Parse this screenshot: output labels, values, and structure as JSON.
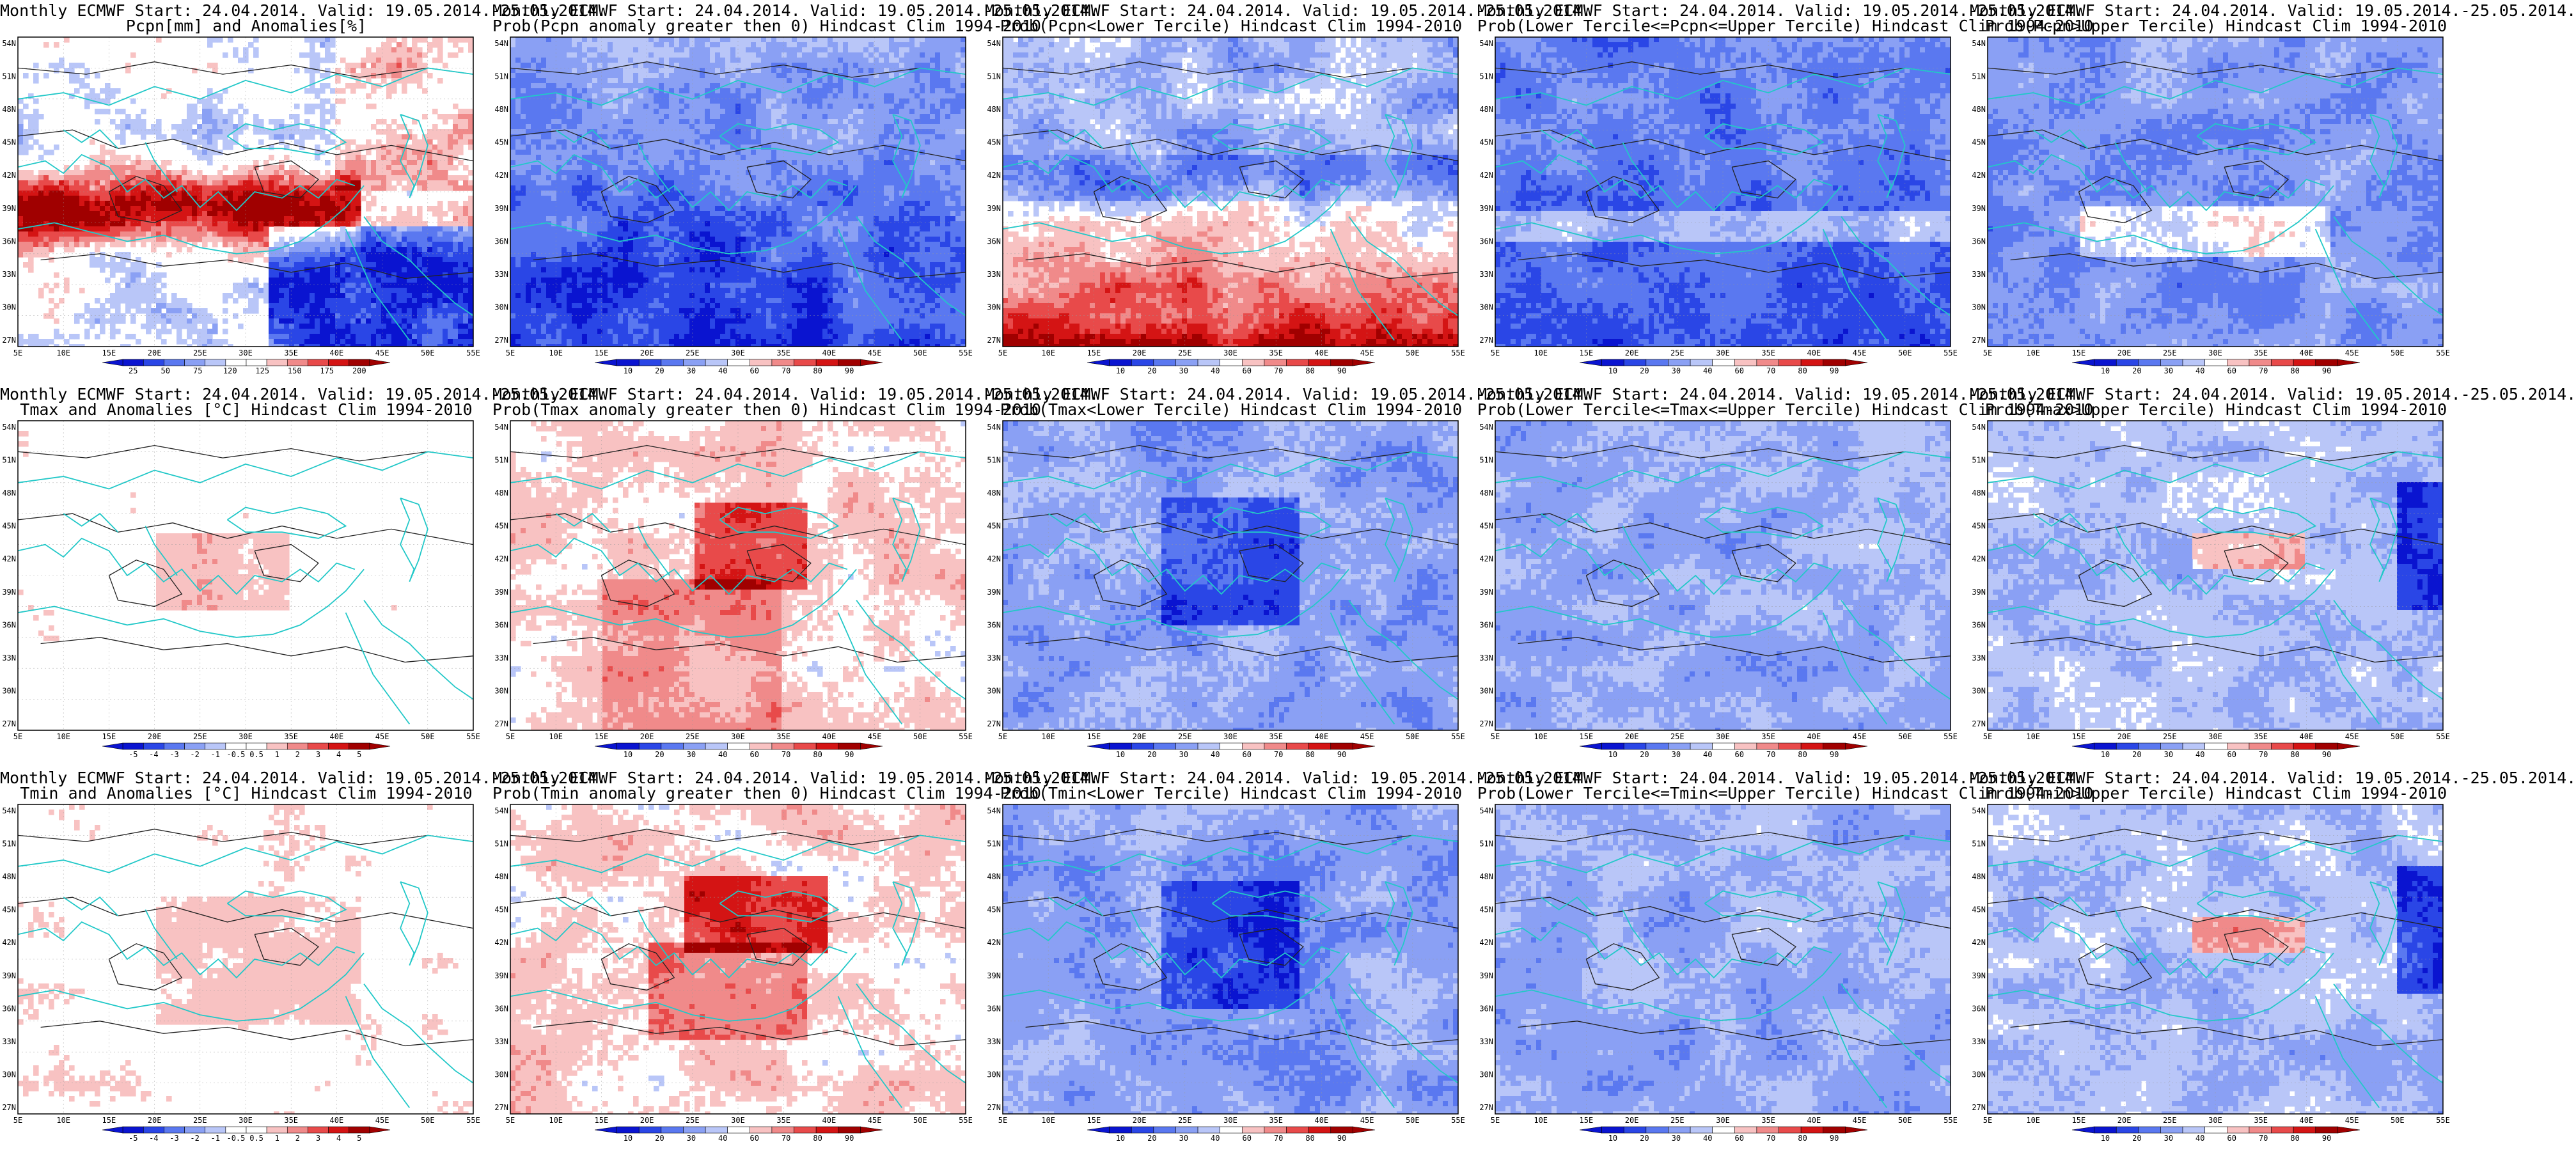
{
  "panels": [
    {
      "title1": "Monthly ECMWF Start: 24.04.2014. Valid: 19.05.2014.-25.05.2014.",
      "title2": "Pcpn[mm] and Anomalies[%]",
      "palette": "anom",
      "scheme": "pcpn_anom",
      "colorbar": [
        "25",
        "50",
        "75",
        "120",
        "125",
        "150",
        "175",
        "200"
      ]
    },
    {
      "title1": "Monthly ECMWF Start: 24.04.2014. Valid: 19.05.2014.-25.05.2014.",
      "title2": "Prob(Pcpn anomaly greater then 0) Hindcast Clim 1994-2010",
      "palette": "prob",
      "scheme": "cool",
      "colorbar": [
        "10",
        "20",
        "30",
        "40",
        "60",
        "70",
        "80",
        "90"
      ]
    },
    {
      "title1": "Monthly ECMWF Start: 24.04.2014. Valid: 19.05.2014.-25.05.2014.",
      "title2": "Prob(Pcpn<Lower Tercile) Hindcast Clim 1994-2010",
      "palette": "prob",
      "scheme": "red_south",
      "colorbar": [
        "10",
        "20",
        "30",
        "40",
        "60",
        "70",
        "80",
        "90"
      ]
    },
    {
      "title1": "Monthly ECMWF Start: 24.04.2014. Valid: 19.05.2014.-25.05.2014.",
      "title2": "Prob(Lower Tercile<=Pcpn<=Upper Tercile) Hindcast Clim 1994-2010",
      "palette": "prob",
      "scheme": "deep_blue",
      "colorbar": [
        "10",
        "20",
        "30",
        "40",
        "60",
        "70",
        "80",
        "90"
      ]
    },
    {
      "title1": "Monthly ECMWF Start: 24.04.2014. Valid: 19.05.2014.-25.05.2014.",
      "title2": "Prob(Pcpn>Upper Tercile) Hindcast Clim 1994-2010",
      "palette": "prob",
      "scheme": "cool_white",
      "colorbar": [
        "10",
        "20",
        "30",
        "40",
        "60",
        "70",
        "80",
        "90"
      ]
    },
    {
      "title1": "Monthly ECMWF Start: 24.04.2014. Valid: 19.05.2014.-25.05.2014.",
      "title2": "Tmax and Anomalies [°C] Hindcast Clim 1994-2010",
      "palette": "tanom",
      "scheme": "mostly_white",
      "colorbar": [
        "-5",
        "-4",
        "-3",
        "-2",
        "-1",
        "-0.5",
        "0.5",
        "1",
        "2",
        "3",
        "4",
        "5"
      ]
    },
    {
      "title1": "Monthly ECMWF Start: 24.04.2014. Valid: 19.05.2014.-25.05.2014.",
      "title2": "Prob(Tmax anomaly greater then 0) Hindcast Clim 1994-2010",
      "palette": "prob",
      "scheme": "warm_light",
      "colorbar": [
        "10",
        "20",
        "30",
        "40",
        "60",
        "70",
        "80",
        "90"
      ]
    },
    {
      "title1": "Monthly ECMWF Start: 24.04.2014. Valid: 19.05.2014.-25.05.2014.",
      "title2": "Prob(Tmax<Lower Tercile) Hindcast Clim 1994-2010",
      "palette": "prob",
      "scheme": "blue_med",
      "colorbar": [
        "10",
        "20",
        "30",
        "40",
        "60",
        "70",
        "80",
        "90"
      ]
    },
    {
      "title1": "Monthly ECMWF Start: 24.04.2014. Valid: 19.05.2014.-25.05.2014.",
      "title2": "Prob(Lower Tercile<=Tmax<=Upper Tercile) Hindcast Clim 1994-2010",
      "palette": "prob",
      "scheme": "blue_light",
      "colorbar": [
        "10",
        "20",
        "30",
        "40",
        "60",
        "70",
        "80",
        "90"
      ]
    },
    {
      "title1": "Monthly ECMWF Start: 24.04.2014. Valid: 19.05.2014.-25.05.2014.",
      "title2": "Prob(Tmax>Upper Tercile) Hindcast Clim 1994-2010",
      "palette": "prob",
      "scheme": "blue_mix",
      "colorbar": [
        "10",
        "20",
        "30",
        "40",
        "60",
        "70",
        "80",
        "90"
      ]
    },
    {
      "title1": "Monthly ECMWF Start: 24.04.2014. Valid: 19.05.2014.-25.05.2014.",
      "title2": "Tmin and Anomalies [°C] Hindcast Clim 1994-2010",
      "palette": "tanom",
      "scheme": "mostly_white_pink",
      "colorbar": [
        "-5",
        "-4",
        "-3",
        "-2",
        "-1",
        "-0.5",
        "0.5",
        "1",
        "2",
        "3",
        "4",
        "5"
      ]
    },
    {
      "title1": "Monthly ECMWF Start: 24.04.2014. Valid: 19.05.2014.-25.05.2014.",
      "title2": "Prob(Tmin anomaly greater then 0) Hindcast Clim 1994-2010",
      "palette": "prob",
      "scheme": "warm_strong",
      "colorbar": [
        "10",
        "20",
        "30",
        "40",
        "60",
        "70",
        "80",
        "90"
      ]
    },
    {
      "title1": "Monthly ECMWF Start: 24.04.2014. Valid: 19.05.2014.-25.05.2014.",
      "title2": "Prob(Tmin<Lower Tercile) Hindcast Clim 1994-2010",
      "palette": "prob",
      "scheme": "blue_med",
      "colorbar": [
        "10",
        "20",
        "30",
        "40",
        "60",
        "70",
        "80",
        "90"
      ]
    },
    {
      "title1": "Monthly ECMWF Start: 24.04.2014. Valid: 19.05.2014.-25.05.2014.",
      "title2": "Prob(Lower Tercile<=Tmin<=Upper Tercile) Hindcast Clim 1994-2010",
      "palette": "prob",
      "scheme": "blue_light",
      "colorbar": [
        "10",
        "20",
        "30",
        "40",
        "60",
        "70",
        "80",
        "90"
      ]
    },
    {
      "title1": "Monthly ECMWF Start: 24.04.2014. Valid: 19.05.2014.-25.05.2014.",
      "title2": "Prob(Tmin>Upper Tercile) Hindcast Clim 1994-2010",
      "palette": "prob",
      "scheme": "blue_mix",
      "colorbar": [
        "10",
        "20",
        "30",
        "40",
        "60",
        "70",
        "80",
        "90"
      ]
    }
  ],
  "lat_labels": [
    "54N",
    "51N",
    "48N",
    "45N",
    "42N",
    "39N",
    "36N",
    "33N",
    "30N",
    "27N"
  ],
  "lon_labels": [
    "5E",
    "10E",
    "15E",
    "20E",
    "25E",
    "30E",
    "35E",
    "40E",
    "45E",
    "50E",
    "55E"
  ],
  "colors": {
    "coast": "#22c8c8",
    "contour": "#222222",
    "prob_palette": [
      "#0a14d0",
      "#2a46e6",
      "#5a78f0",
      "#8aa0f4",
      "#b9c6f8",
      "#ffffff",
      "#f8c2c2",
      "#f08a8a",
      "#e84a4a",
      "#d41414",
      "#a00000"
    ],
    "anom_palette": [
      "#0a14d0",
      "#2a46e6",
      "#5a78f0",
      "#8aa0f4",
      "#b9c6f8",
      "#ffffff",
      "#ffffff",
      "#f8c2c2",
      "#f08a8a",
      "#e84a4a",
      "#d41414",
      "#a00000"
    ]
  }
}
